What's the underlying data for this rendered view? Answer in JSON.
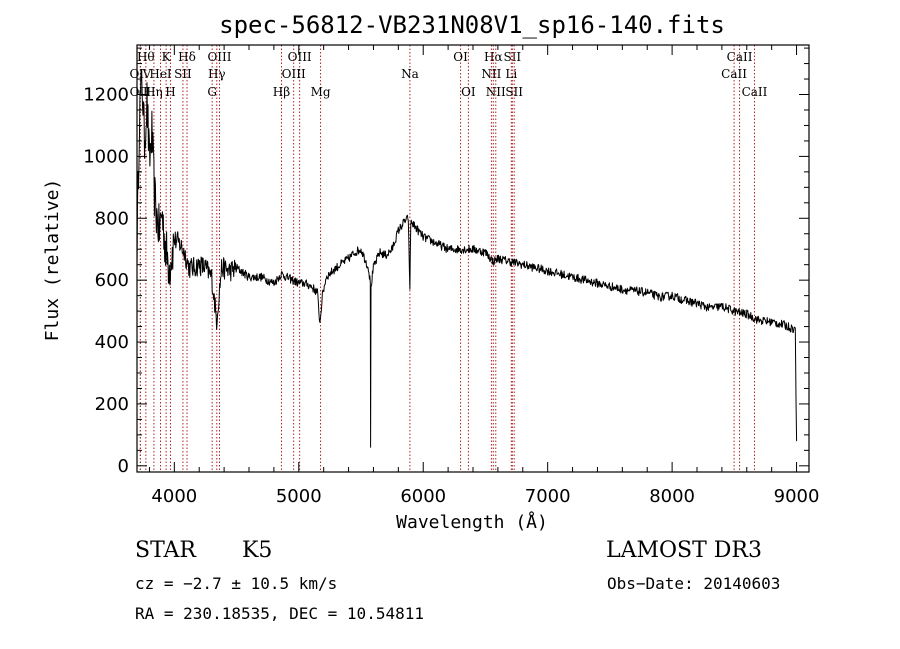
{
  "chart_data": {
    "type": "line",
    "title": "spec-56812-VB231N08V1_sp16-140.fits",
    "xlabel": "Wavelength (Å)",
    "ylabel": "Flux (relative)",
    "xlim": [
      3700,
      9100
    ],
    "ylim": [
      -20,
      1360
    ],
    "xticks": [
      4000,
      5000,
      6000,
      7000,
      8000,
      9000
    ],
    "yticks": [
      0,
      200,
      400,
      600,
      800,
      1000,
      1200
    ],
    "grid": false,
    "series": [
      {
        "name": "flux",
        "x": [
          3700,
          3720,
          3740,
          3760,
          3780,
          3800,
          3820,
          3840,
          3860,
          3880,
          3900,
          3930,
          3960,
          4000,
          4040,
          4080,
          4120,
          4160,
          4200,
          4250,
          4300,
          4340,
          4380,
          4450,
          4500,
          4600,
          4700,
          4800,
          4860,
          4900,
          4950,
          5000,
          5050,
          5100,
          5150,
          5170,
          5190,
          5220,
          5300,
          5400,
          5450,
          5500,
          5540,
          5560,
          5575,
          5577,
          5580,
          5600,
          5650,
          5700,
          5750,
          5800,
          5850,
          5880,
          5893,
          5900,
          5920,
          6000,
          6100,
          6200,
          6300,
          6400,
          6500,
          6563,
          6600,
          6700,
          6800,
          6900,
          7000,
          7100,
          7200,
          7300,
          7400,
          7500,
          7600,
          7700,
          7800,
          7900,
          8000,
          8100,
          8200,
          8300,
          8400,
          8500,
          8542,
          8600,
          8700,
          8800,
          8900,
          8990,
          9000
        ],
        "y": [
          700,
          1150,
          1250,
          1050,
          1180,
          980,
          1080,
          880,
          800,
          760,
          820,
          700,
          640,
          730,
          720,
          690,
          640,
          640,
          650,
          640,
          610,
          470,
          640,
          630,
          640,
          610,
          610,
          590,
          620,
          610,
          600,
          590,
          590,
          580,
          560,
          460,
          550,
          610,
          640,
          670,
          690,
          700,
          660,
          640,
          590,
          60,
          580,
          640,
          690,
          680,
          700,
          760,
          790,
          800,
          560,
          790,
          780,
          740,
          720,
          700,
          700,
          700,
          690,
          660,
          670,
          660,
          650,
          640,
          630,
          620,
          610,
          600,
          590,
          580,
          570,
          565,
          560,
          545,
          550,
          535,
          525,
          510,
          515,
          500,
          495,
          490,
          470,
          465,
          455,
          440,
          80
        ]
      }
    ],
    "line_markers": [
      {
        "label": "OⅣ",
        "x": 3727,
        "row": 2
      },
      {
        "label": "Hθ",
        "x": 3771,
        "row": 1
      },
      {
        "label": "OⅢ",
        "x": 3727,
        "row": 3
      },
      {
        "label": "Hη",
        "x": 3836,
        "row": 3
      },
      {
        "label": "K",
        "x": 3934,
        "row": 1
      },
      {
        "label": "HeI",
        "x": 3889,
        "row": 2
      },
      {
        "label": "H",
        "x": 3969,
        "row": 3
      },
      {
        "label": "SII",
        "x": 4069,
        "row": 2
      },
      {
        "label": "Hδ",
        "x": 4102,
        "row": 1
      },
      {
        "label": "OIII",
        "x": 4363,
        "row": 1
      },
      {
        "label": "Hγ",
        "x": 4341,
        "row": 2
      },
      {
        "label": "G",
        "x": 4304,
        "row": 3
      },
      {
        "label": "Hβ",
        "x": 4861,
        "row": 3
      },
      {
        "label": "OIII",
        "x": 5007,
        "row": 1
      },
      {
        "label": "OIII",
        "x": 4959,
        "row": 2
      },
      {
        "label": "Mg",
        "x": 5175,
        "row": 3
      },
      {
        "label": "Na",
        "x": 5893,
        "row": 2
      },
      {
        "label": "OI",
        "x": 6300,
        "row": 1
      },
      {
        "label": "OI",
        "x": 6363,
        "row": 3
      },
      {
        "label": "Hα",
        "x": 6563,
        "row": 1
      },
      {
        "label": "NII",
        "x": 6548,
        "row": 2
      },
      {
        "label": "NII",
        "x": 6583,
        "row": 3
      },
      {
        "label": "SII",
        "x": 6716,
        "row": 1
      },
      {
        "label": "Li",
        "x": 6708,
        "row": 2
      },
      {
        "label": "SII",
        "x": 6731,
        "row": 3
      },
      {
        "label": "CaII",
        "x": 8542,
        "row": 1
      },
      {
        "label": "CaII",
        "x": 8498,
        "row": 2
      },
      {
        "label": "CaII",
        "x": 8662,
        "row": 3
      }
    ]
  },
  "info": {
    "class": "STAR",
    "subclass": "K5",
    "survey": "LAMOST DR3",
    "cz": "cz = −2.7 ± 10.5 km/s",
    "obs_date": "Obs−Date: 20140603",
    "coords": "RA = 230.18535, DEC =  10.54811"
  },
  "colors": {
    "marker_line": "#b22222",
    "spectrum": "#000000"
  }
}
